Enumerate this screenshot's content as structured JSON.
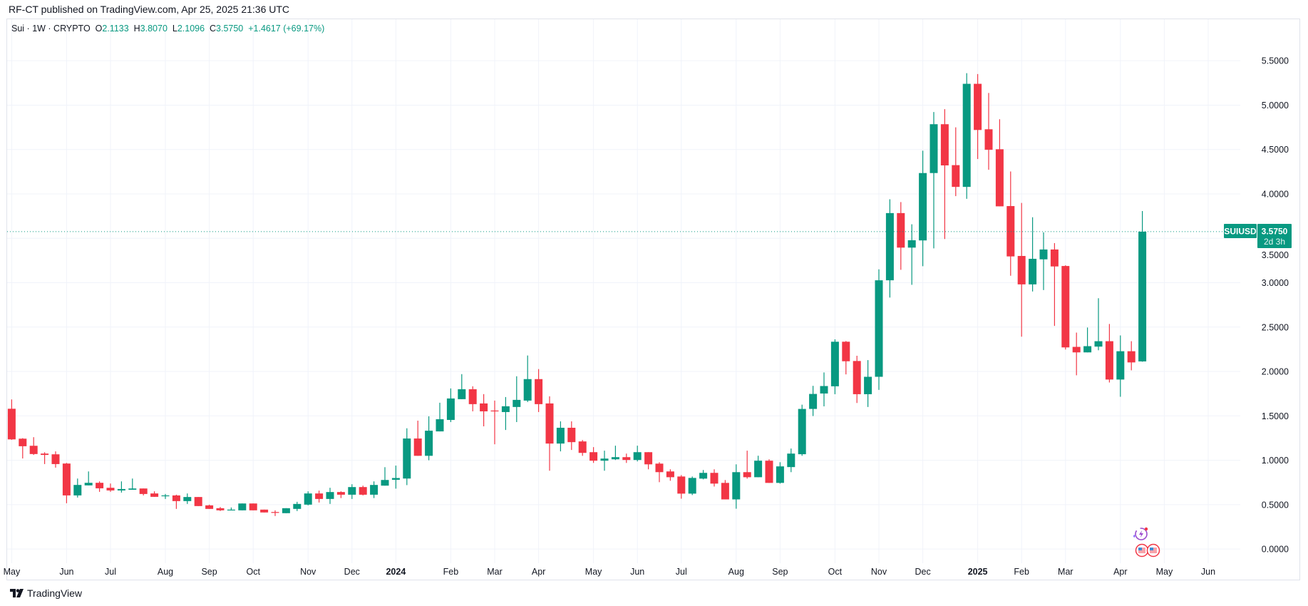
{
  "header": {
    "published": "RF-CT published on TradingView.com, Apr 25, 2025 21:36 UTC"
  },
  "legend": {
    "symbol": "Sui",
    "interval": "1W",
    "exchange": "CRYPTO",
    "open_label": "O",
    "open": "2.1133",
    "high_label": "H",
    "high": "3.8070",
    "low_label": "L",
    "low": "2.1096",
    "close_label": "C",
    "close": "3.5750",
    "change": "+1.4617 (+69.17%)"
  },
  "price_label": {
    "ticker": "SUIUSD",
    "price": "3.5750",
    "countdown": "2d 3h"
  },
  "footer": {
    "brand": "TradingView"
  },
  "colors": {
    "up": "#089981",
    "down": "#f23645",
    "grid": "#f0f3fa",
    "text": "#131722"
  },
  "icons": [
    "lightning-event-icon",
    "us-flag-event-icon",
    "us-flag-event-icon"
  ],
  "chart_data": {
    "type": "candlestick",
    "interval": "1W",
    "ylim": [
      0,
      5.8
    ],
    "grid": true,
    "current_price": 3.575,
    "y_ticks": [
      "0.0000",
      "0.5000",
      "1.0000",
      "1.5000",
      "2.0000",
      "2.5000",
      "3.0000",
      "3.5000",
      "4.0000",
      "4.5000",
      "5.0000",
      "5.5000"
    ],
    "x_ticks": [
      {
        "label": "May",
        "date": "2023-05-01"
      },
      {
        "label": "Jun",
        "date": "2023-06-05"
      },
      {
        "label": "Jul",
        "date": "2023-07-03"
      },
      {
        "label": "Aug",
        "date": "2023-08-07"
      },
      {
        "label": "Sep",
        "date": "2023-09-04"
      },
      {
        "label": "Oct",
        "date": "2023-10-02"
      },
      {
        "label": "Nov",
        "date": "2023-11-06"
      },
      {
        "label": "Dec",
        "date": "2023-12-04"
      },
      {
        "label": "2024",
        "date": "2024-01-01",
        "bold": true
      },
      {
        "label": "Feb",
        "date": "2024-02-05"
      },
      {
        "label": "Mar",
        "date": "2024-03-04"
      },
      {
        "label": "Apr",
        "date": "2024-04-01"
      },
      {
        "label": "May",
        "date": "2024-05-06"
      },
      {
        "label": "Jun",
        "date": "2024-06-03"
      },
      {
        "label": "Jul",
        "date": "2024-07-01"
      },
      {
        "label": "Aug",
        "date": "2024-08-05"
      },
      {
        "label": "Sep",
        "date": "2024-09-02"
      },
      {
        "label": "Oct",
        "date": "2024-10-07"
      },
      {
        "label": "Nov",
        "date": "2024-11-04"
      },
      {
        "label": "Dec",
        "date": "2024-12-02"
      },
      {
        "label": "2025",
        "date": "2025-01-06",
        "bold": true
      },
      {
        "label": "Feb",
        "date": "2025-02-03"
      },
      {
        "label": "Mar",
        "date": "2025-03-03"
      },
      {
        "label": "Apr",
        "date": "2025-04-07"
      },
      {
        "label": "May",
        "date": "2025-05-05"
      },
      {
        "label": "Jun",
        "date": "2025-06-02"
      }
    ],
    "columns": [
      "date",
      "open",
      "high",
      "low",
      "close"
    ],
    "candles": [
      [
        "2023-05-01",
        1.58,
        1.685,
        1.23,
        1.235
      ],
      [
        "2023-05-08",
        1.243,
        1.249,
        1.02,
        1.158
      ],
      [
        "2023-05-15",
        1.163,
        1.26,
        1.06,
        1.07
      ],
      [
        "2023-05-22",
        1.075,
        1.09,
        0.957,
        1.06
      ],
      [
        "2023-05-29",
        1.067,
        1.1,
        0.917,
        0.957
      ],
      [
        "2023-06-05",
        0.963,
        0.97,
        0.516,
        0.604
      ],
      [
        "2023-06-12",
        0.604,
        0.794,
        0.58,
        0.722
      ],
      [
        "2023-06-19",
        0.717,
        0.874,
        0.717,
        0.746
      ],
      [
        "2023-06-26",
        0.746,
        0.762,
        0.644,
        0.684
      ],
      [
        "2023-07-03",
        0.69,
        0.738,
        0.644,
        0.66
      ],
      [
        "2023-07-10",
        0.66,
        0.762,
        0.636,
        0.676
      ],
      [
        "2023-07-17",
        0.668,
        0.794,
        0.668,
        0.682
      ],
      [
        "2023-07-24",
        0.682,
        0.682,
        0.604,
        0.62
      ],
      [
        "2023-07-31",
        0.626,
        0.65,
        0.588,
        0.588
      ],
      [
        "2023-08-07",
        0.598,
        0.62,
        0.564,
        0.604
      ],
      [
        "2023-08-14",
        0.604,
        0.612,
        0.452,
        0.54
      ],
      [
        "2023-08-21",
        0.54,
        0.626,
        0.508,
        0.586
      ],
      [
        "2023-08-28",
        0.586,
        0.586,
        0.484,
        0.484
      ],
      [
        "2023-09-04",
        0.492,
        0.5,
        0.452,
        0.452
      ],
      [
        "2023-09-11",
        0.46,
        0.473,
        0.428,
        0.436
      ],
      [
        "2023-09-18",
        0.436,
        0.468,
        0.436,
        0.444
      ],
      [
        "2023-09-25",
        0.436,
        0.513,
        0.436,
        0.513
      ],
      [
        "2023-10-02",
        0.513,
        0.513,
        0.436,
        0.436
      ],
      [
        "2023-10-09",
        0.444,
        0.444,
        0.412,
        0.412
      ],
      [
        "2023-10-16",
        0.417,
        0.436,
        0.372,
        0.412
      ],
      [
        "2023-10-23",
        0.404,
        0.46,
        0.404,
        0.46
      ],
      [
        "2023-10-30",
        0.452,
        0.532,
        0.428,
        0.508
      ],
      [
        "2023-11-06",
        0.5,
        0.65,
        0.492,
        0.626
      ],
      [
        "2023-11-13",
        0.626,
        0.658,
        0.524,
        0.564
      ],
      [
        "2023-11-20",
        0.564,
        0.69,
        0.508,
        0.642
      ],
      [
        "2023-11-27",
        0.642,
        0.65,
        0.574,
        0.612
      ],
      [
        "2023-12-04",
        0.612,
        0.73,
        0.564,
        0.698
      ],
      [
        "2023-12-11",
        0.698,
        0.714,
        0.604,
        0.612
      ],
      [
        "2023-12-18",
        0.612,
        0.762,
        0.574,
        0.722
      ],
      [
        "2023-12-25",
        0.714,
        0.922,
        0.714,
        0.778
      ],
      [
        "2024-01-01",
        0.78,
        0.94,
        0.68,
        0.8
      ],
      [
        "2024-01-08",
        0.794,
        1.36,
        0.72,
        1.245
      ],
      [
        "2024-01-15",
        1.245,
        1.446,
        1.05,
        1.05
      ],
      [
        "2024-01-22",
        1.05,
        1.495,
        1.0,
        1.333
      ],
      [
        "2024-01-29",
        1.325,
        1.648,
        1.325,
        1.462
      ],
      [
        "2024-02-05",
        1.454,
        1.809,
        1.43,
        1.696
      ],
      [
        "2024-02-12",
        1.688,
        1.97,
        1.688,
        1.8
      ],
      [
        "2024-02-19",
        1.8,
        1.833,
        1.551,
        1.632
      ],
      [
        "2024-02-26",
        1.64,
        1.745,
        1.382,
        1.551
      ],
      [
        "2024-03-04",
        1.56,
        1.672,
        1.18,
        1.551
      ],
      [
        "2024-03-11",
        1.543,
        1.712,
        1.341,
        1.608
      ],
      [
        "2024-03-18",
        1.6,
        1.946,
        1.43,
        1.68
      ],
      [
        "2024-03-25",
        1.672,
        2.18,
        1.656,
        1.914
      ],
      [
        "2024-04-01",
        1.914,
        2.027,
        1.543,
        1.632
      ],
      [
        "2024-04-08",
        1.64,
        1.72,
        0.882,
        1.188
      ],
      [
        "2024-04-15",
        1.188,
        1.438,
        1.1,
        1.366
      ],
      [
        "2024-04-22",
        1.366,
        1.438,
        1.116,
        1.204
      ],
      [
        "2024-04-29",
        1.212,
        1.228,
        1.05,
        1.083
      ],
      [
        "2024-05-06",
        1.091,
        1.148,
        0.97,
        0.995
      ],
      [
        "2024-05-13",
        0.995,
        1.108,
        0.882,
        1.019
      ],
      [
        "2024-05-20",
        1.011,
        1.164,
        1.003,
        1.035
      ],
      [
        "2024-05-27",
        1.035,
        1.075,
        0.97,
        1.003
      ],
      [
        "2024-06-03",
        1.003,
        1.164,
        0.987,
        1.091
      ],
      [
        "2024-06-10",
        1.091,
        1.091,
        0.898,
        0.954
      ],
      [
        "2024-06-17",
        0.962,
        0.978,
        0.753,
        0.866
      ],
      [
        "2024-06-24",
        0.874,
        0.898,
        0.769,
        0.809
      ],
      [
        "2024-07-01",
        0.817,
        0.833,
        0.567,
        0.624
      ],
      [
        "2024-07-08",
        0.624,
        0.817,
        0.608,
        0.801
      ],
      [
        "2024-07-15",
        0.793,
        0.89,
        0.785,
        0.858
      ],
      [
        "2024-07-22",
        0.858,
        0.898,
        0.704,
        0.737
      ],
      [
        "2024-07-29",
        0.745,
        0.777,
        0.559,
        0.559
      ],
      [
        "2024-08-05",
        0.559,
        0.954,
        0.454,
        0.866
      ],
      [
        "2024-08-12",
        0.866,
        1.108,
        0.793,
        0.809
      ],
      [
        "2024-08-19",
        0.809,
        1.051,
        0.809,
        0.995
      ],
      [
        "2024-08-26",
        0.995,
        1.011,
        0.745,
        0.745
      ],
      [
        "2024-09-02",
        0.745,
        0.978,
        0.737,
        0.931
      ],
      [
        "2024-09-09",
        0.923,
        1.132,
        0.866,
        1.075
      ],
      [
        "2024-09-16",
        1.068,
        1.626,
        1.05,
        1.578
      ],
      [
        "2024-09-23",
        1.578,
        1.838,
        1.498,
        1.747
      ],
      [
        "2024-09-30",
        1.752,
        1.989,
        1.607,
        1.836
      ],
      [
        "2024-10-07",
        1.833,
        2.362,
        1.744,
        2.335
      ],
      [
        "2024-10-14",
        2.335,
        2.343,
        1.967,
        2.115
      ],
      [
        "2024-10-21",
        2.118,
        2.177,
        1.645,
        1.744
      ],
      [
        "2024-10-28",
        1.744,
        2.128,
        1.6,
        1.94
      ],
      [
        "2024-11-04",
        1.94,
        3.151,
        1.793,
        3.027
      ],
      [
        "2024-11-11",
        3.027,
        3.94,
        2.832,
        3.784
      ],
      [
        "2024-11-18",
        3.784,
        3.908,
        3.145,
        3.395
      ],
      [
        "2024-11-25",
        3.395,
        3.658,
        2.976,
        3.478
      ],
      [
        "2024-12-02",
        3.476,
        4.487,
        3.186,
        4.235
      ],
      [
        "2024-12-09",
        4.235,
        4.922,
        3.387,
        4.785
      ],
      [
        "2024-12-16",
        4.785,
        4.954,
        3.492,
        4.321
      ],
      [
        "2024-12-23",
        4.324,
        4.75,
        3.975,
        4.079
      ],
      [
        "2024-12-30",
        4.079,
        5.36,
        3.945,
        5.24
      ],
      [
        "2025-01-06",
        5.24,
        5.35,
        4.393,
        4.72
      ],
      [
        "2025-01-13",
        4.728,
        5.137,
        4.272,
        4.497
      ],
      [
        "2025-01-20",
        4.503,
        4.841,
        3.86,
        3.86
      ],
      [
        "2025-01-27",
        3.863,
        4.253,
        3.078,
        3.296
      ],
      [
        "2025-02-03",
        3.301,
        3.898,
        2.392,
        2.981
      ],
      [
        "2025-02-10",
        2.981,
        3.737,
        2.901,
        3.269
      ],
      [
        "2025-02-17",
        3.263,
        3.567,
        2.917,
        3.374
      ],
      [
        "2025-02-24",
        3.374,
        3.446,
        2.513,
        3.183
      ],
      [
        "2025-03-03",
        3.188,
        3.196,
        2.247,
        2.271
      ],
      [
        "2025-03-10",
        2.277,
        2.438,
        1.957,
        2.215
      ],
      [
        "2025-03-17",
        2.215,
        2.495,
        2.215,
        2.285
      ],
      [
        "2025-03-24",
        2.28,
        2.825,
        2.239,
        2.341
      ],
      [
        "2025-03-31",
        2.341,
        2.535,
        1.876,
        1.909
      ],
      [
        "2025-04-07",
        1.909,
        2.406,
        1.715,
        2.228
      ],
      [
        "2025-04-14",
        2.228,
        2.341,
        2.013,
        2.102
      ],
      [
        "2025-04-21",
        2.1133,
        3.807,
        2.1096,
        3.575
      ]
    ]
  }
}
